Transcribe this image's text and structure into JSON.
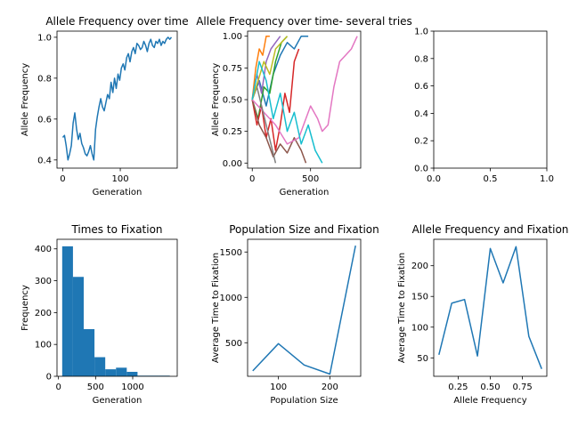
{
  "chart_data": [
    {
      "type": "line",
      "title": "Allele Frequency over time",
      "xlabel": "Generation",
      "ylabel": "Allele Frequency",
      "xlim": [
        -10,
        199
      ],
      "ylim": [
        0.36,
        1.03
      ],
      "xticks": [
        0,
        100
      ],
      "yticks": [
        0.4,
        0.6,
        0.8,
        1.0
      ],
      "ytick_labels": [
        "0.4",
        "0.6",
        "0.8",
        "1.0"
      ],
      "series": [
        {
          "color": "#1f77b4",
          "x": [
            0,
            3,
            6,
            9,
            12,
            15,
            18,
            21,
            24,
            27,
            30,
            33,
            36,
            39,
            42,
            45,
            48,
            51,
            54,
            57,
            60,
            63,
            66,
            69,
            72,
            75,
            78,
            81,
            84,
            87,
            90,
            93,
            96,
            99,
            102,
            105,
            108,
            111,
            114,
            117,
            120,
            123,
            126,
            129,
            132,
            135,
            138,
            141,
            144,
            147,
            150,
            153,
            156,
            159,
            162,
            165,
            168,
            171,
            174,
            177,
            180,
            183,
            186,
            189
          ],
          "y": [
            0.51,
            0.52,
            0.47,
            0.4,
            0.43,
            0.47,
            0.58,
            0.63,
            0.55,
            0.5,
            0.53,
            0.48,
            0.46,
            0.43,
            0.42,
            0.44,
            0.47,
            0.43,
            0.4,
            0.55,
            0.61,
            0.66,
            0.7,
            0.66,
            0.64,
            0.68,
            0.72,
            0.7,
            0.78,
            0.73,
            0.8,
            0.75,
            0.82,
            0.79,
            0.85,
            0.87,
            0.84,
            0.9,
            0.92,
            0.88,
            0.93,
            0.95,
            0.92,
            0.97,
            0.96,
            0.94,
            0.95,
            0.98,
            0.96,
            0.93,
            0.97,
            0.99,
            0.96,
            0.95,
            0.98,
            0.97,
            0.99,
            0.96,
            0.98,
            0.97,
            0.99,
            1.0,
            0.99,
            1.0
          ]
        }
      ]
    },
    {
      "type": "line",
      "title": "Allele Frequency over time- several tries",
      "xlabel": "Generation",
      "ylabel": "Allele Frequency",
      "xlim": [
        -40,
        930
      ],
      "ylim": [
        -0.04,
        1.04
      ],
      "xticks": [
        0,
        500
      ],
      "yticks": [
        0,
        0.25,
        0.5,
        0.75,
        1.0
      ],
      "ytick_labels": [
        "0.00",
        "0.25",
        "0.50",
        "0.75",
        "1.00"
      ],
      "series": [
        {
          "color": "#1f77b4",
          "x": [
            0,
            60,
            120,
            180,
            240,
            300,
            360,
            420,
            480
          ],
          "y": [
            0.5,
            0.65,
            0.45,
            0.7,
            0.85,
            0.95,
            0.9,
            1.0,
            1.0
          ]
        },
        {
          "color": "#ff7f0e",
          "x": [
            0,
            30,
            60,
            90,
            120,
            150
          ],
          "y": [
            0.5,
            0.75,
            0.9,
            0.85,
            1.0,
            1.0
          ]
        },
        {
          "color": "#2ca02c",
          "x": [
            0,
            50,
            100,
            150,
            200,
            250,
            300
          ],
          "y": [
            0.5,
            0.35,
            0.6,
            0.55,
            0.8,
            0.95,
            1.0
          ]
        },
        {
          "color": "#d62728",
          "x": [
            0,
            40,
            80,
            120,
            160,
            200,
            240,
            280,
            320,
            360,
            400
          ],
          "y": [
            0.5,
            0.3,
            0.45,
            0.2,
            0.35,
            0.1,
            0.3,
            0.55,
            0.4,
            0.8,
            0.9
          ]
        },
        {
          "color": "#9467bd",
          "x": [
            0,
            40,
            80,
            120,
            160,
            200,
            240
          ],
          "y": [
            0.5,
            0.7,
            0.55,
            0.8,
            0.9,
            0.95,
            1.0
          ]
        },
        {
          "color": "#8c564b",
          "x": [
            0,
            60,
            120,
            180,
            240,
            300,
            360,
            420,
            460
          ],
          "y": [
            0.5,
            0.3,
            0.2,
            0.05,
            0.15,
            0.08,
            0.2,
            0.1,
            0.0
          ]
        },
        {
          "color": "#e377c2",
          "x": [
            0,
            100,
            200,
            300,
            400,
            500,
            560,
            600,
            650,
            700,
            750,
            800,
            850,
            900
          ],
          "y": [
            0.5,
            0.4,
            0.3,
            0.15,
            0.2,
            0.45,
            0.35,
            0.25,
            0.3,
            0.6,
            0.8,
            0.85,
            0.9,
            1.0
          ]
        },
        {
          "color": "#7f7f7f",
          "x": [
            0,
            40,
            80,
            120,
            160,
            200
          ],
          "y": [
            0.5,
            0.6,
            0.45,
            0.3,
            0.15,
            0.0
          ]
        },
        {
          "color": "#bcbd22",
          "x": [
            0,
            50,
            100,
            150,
            200,
            250,
            300
          ],
          "y": [
            0.5,
            0.65,
            0.8,
            0.7,
            0.9,
            0.95,
            1.0
          ]
        },
        {
          "color": "#17becf",
          "x": [
            0,
            60,
            120,
            180,
            240,
            300,
            360,
            420,
            480,
            540,
            600
          ],
          "y": [
            0.5,
            0.8,
            0.65,
            0.35,
            0.55,
            0.25,
            0.4,
            0.15,
            0.3,
            0.1,
            0.0
          ]
        }
      ]
    },
    {
      "type": "line",
      "title": "",
      "xlabel": "",
      "ylabel": "",
      "xlim": [
        0,
        1
      ],
      "ylim": [
        0,
        1
      ],
      "xticks": [
        0,
        0.5,
        1.0
      ],
      "xtick_labels": [
        "0.0",
        "0.5",
        "1.0"
      ],
      "yticks": [
        0,
        0.2,
        0.4,
        0.6,
        0.8,
        1.0
      ],
      "ytick_labels": [
        "0.0",
        "0.2",
        "0.4",
        "0.6",
        "0.8",
        "1.0"
      ],
      "series": []
    },
    {
      "type": "bar",
      "title": "Times to Fixation",
      "xlabel": "Generation",
      "ylabel": "Frequency",
      "xlim": [
        -20,
        1600
      ],
      "ylim": [
        0,
        430
      ],
      "xticks": [
        0,
        500,
        1000
      ],
      "yticks": [
        0,
        100,
        200,
        300,
        400
      ],
      "bin_edges": [
        50,
        195,
        340,
        485,
        630,
        775,
        920,
        1065,
        1210,
        1355,
        1500
      ],
      "values": [
        408,
        312,
        148,
        60,
        22,
        27,
        14,
        2,
        2,
        2
      ],
      "color": "#1f77b4"
    },
    {
      "type": "line",
      "title": "Population Size and Fixation",
      "xlabel": "Population Size",
      "ylabel": "Average Time to Fixation",
      "xlim": [
        40,
        260
      ],
      "ylim": [
        130,
        1640
      ],
      "xticks": [
        100,
        200
      ],
      "yticks": [
        500,
        1000,
        1500
      ],
      "series": [
        {
          "color": "#1f77b4",
          "x": [
            50,
            100,
            150,
            200,
            250
          ],
          "y": [
            190,
            490,
            255,
            155,
            1570
          ]
        }
      ]
    },
    {
      "type": "line",
      "title": "Allele Frequency and Fixation",
      "xlabel": "Allele Frequency",
      "ylabel": "Average Time to Fixation",
      "xlim": [
        0.06,
        0.94
      ],
      "ylim": [
        20,
        243
      ],
      "xticks": [
        0.25,
        0.5,
        0.75
      ],
      "xtick_labels": [
        "0.25",
        "0.50",
        "0.75"
      ],
      "yticks": [
        50,
        100,
        150,
        200
      ],
      "series": [
        {
          "color": "#1f77b4",
          "x": [
            0.1,
            0.2,
            0.3,
            0.4,
            0.5,
            0.6,
            0.7,
            0.8,
            0.9
          ],
          "y": [
            55,
            139,
            145,
            53,
            228,
            172,
            231,
            85,
            32
          ]
        }
      ]
    }
  ]
}
